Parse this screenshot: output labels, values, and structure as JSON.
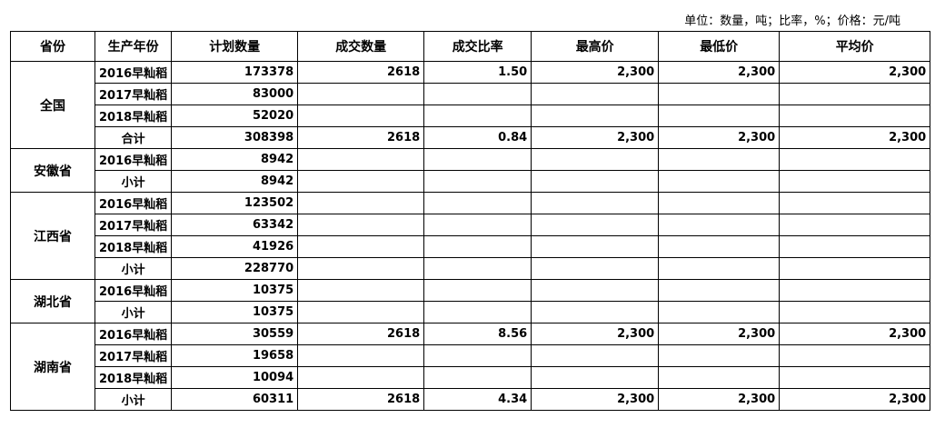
{
  "unit_note": "单位：数量，吨；比率，%；价格：元/吨",
  "headers": [
    "省份",
    "生产年份",
    "计划数量",
    "成交数量",
    "成交比率",
    "最高价",
    "最低价",
    "平均价"
  ],
  "groups": [
    {
      "province": "全国",
      "rows": [
        [
          "2016早籼稻",
          "173378",
          "2618",
          "1.50",
          "2,300",
          "2,300",
          "2,300"
        ],
        [
          "2017早籼稻",
          "83000",
          "",
          "",
          "",
          "",
          ""
        ],
        [
          "2018早籼稻",
          "52020",
          "",
          "",
          "",
          "",
          ""
        ],
        [
          "合计",
          "308398",
          "2618",
          "0.84",
          "2,300",
          "2,300",
          "2,300"
        ]
      ]
    },
    {
      "province": "安徽省",
      "rows": [
        [
          "2016早籼稻",
          "8942",
          "",
          "",
          "",
          "",
          ""
        ],
        [
          "小计",
          "8942",
          "",
          "",
          "",
          "",
          ""
        ]
      ]
    },
    {
      "province": "江西省",
      "rows": [
        [
          "2016早籼稻",
          "123502",
          "",
          "",
          "",
          "",
          ""
        ],
        [
          "2017早籼稻",
          "63342",
          "",
          "",
          "",
          "",
          ""
        ],
        [
          "2018早籼稻",
          "41926",
          "",
          "",
          "",
          "",
          ""
        ],
        [
          "小计",
          "228770",
          "",
          "",
          "",
          "",
          ""
        ]
      ]
    },
    {
      "province": "湖北省",
      "rows": [
        [
          "2016早籼稻",
          "10375",
          "",
          "",
          "",
          "",
          ""
        ],
        [
          "小计",
          "10375",
          "",
          "",
          "",
          "",
          ""
        ]
      ]
    },
    {
      "province": "湖南省",
      "rows": [
        [
          "2016早籼稻",
          "30559",
          "2618",
          "8.56",
          "2,300",
          "2,300",
          "2,300"
        ],
        [
          "2017早籼稻",
          "19658",
          "",
          "",
          "",
          "",
          ""
        ],
        [
          "2018早籼稻",
          "10094",
          "",
          "",
          "",
          "",
          ""
        ],
        [
          "小计",
          "60311",
          "2618",
          "4.34",
          "2,300",
          "2,300",
          "2,300"
        ]
      ]
    }
  ]
}
